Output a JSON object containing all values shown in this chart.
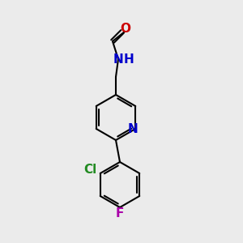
{
  "background_color": "#ebebeb",
  "bond_color": "#000000",
  "bond_width": 1.5,
  "atom_labels": {
    "O": {
      "color": "#cc0000",
      "fontsize": 11,
      "fontweight": "bold"
    },
    "N": {
      "color": "#0000cc",
      "fontsize": 11,
      "fontweight": "bold"
    },
    "H": {
      "color": "#0000cc",
      "fontsize": 11,
      "fontweight": "bold"
    },
    "Cl": {
      "color": "#228b22",
      "fontsize": 11,
      "fontweight": "bold"
    },
    "F": {
      "color": "#aa00aa",
      "fontsize": 11,
      "fontweight": "bold"
    }
  },
  "figsize": [
    3.0,
    3.0
  ],
  "dpi": 100
}
